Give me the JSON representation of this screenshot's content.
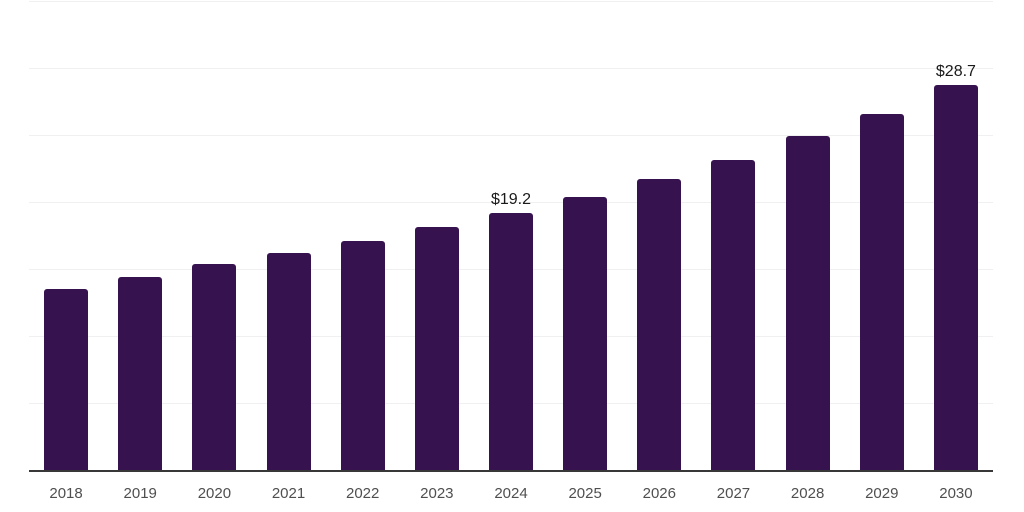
{
  "chart_data": {
    "type": "bar",
    "title": "",
    "xlabel": "",
    "ylabel": "",
    "categories": [
      "2018",
      "2019",
      "2020",
      "2021",
      "2022",
      "2023",
      "2024",
      "2025",
      "2026",
      "2027",
      "2028",
      "2029",
      "2030"
    ],
    "values": [
      13.5,
      14.4,
      15.4,
      16.2,
      17.1,
      18.1,
      19.2,
      20.4,
      21.7,
      23.1,
      24.9,
      26.6,
      28.7
    ],
    "data_labels": [
      "",
      "",
      "",
      "",
      "",
      "",
      "$19.2",
      "",
      "",
      "",
      "",
      "",
      "$28.7"
    ],
    "ylim": [
      0,
      35
    ],
    "gridline_step": 5,
    "grid": true,
    "legend": "none",
    "colors": {
      "bar": "#36124e",
      "axis": "#383838",
      "gridline": "#f0f0f2",
      "tick_label": "#4f4f4f",
      "data_label": "#1a1a1a",
      "background": "#ffffff"
    }
  }
}
